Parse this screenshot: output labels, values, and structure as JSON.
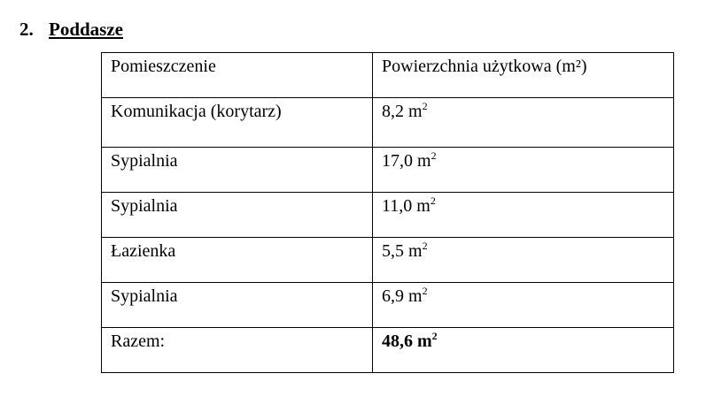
{
  "section": {
    "number": "2.",
    "title": "Poddasze"
  },
  "table": {
    "headers": [
      "Pomieszczenie",
      "Powierzchnia użytkowa (m²)"
    ],
    "rows": [
      {
        "room": "Komunikacja (korytarz)",
        "area": "8,2 m",
        "sup": "2"
      },
      {
        "room": "Sypialnia",
        "area": "17,0 m",
        "sup": "2"
      },
      {
        "room": "Sypialnia",
        "area": "11,0 m",
        "sup": "2"
      },
      {
        "room": "Łazienka",
        "area": "5,5 m",
        "sup": "2"
      },
      {
        "room": "Sypialnia",
        "area": "6,9 m",
        "sup": "2"
      }
    ],
    "total": {
      "label": "Razem:",
      "area": "48,6 m",
      "sup": "2"
    }
  }
}
